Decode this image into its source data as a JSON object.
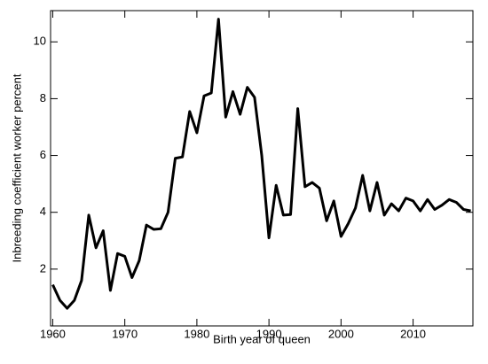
{
  "chart_data": {
    "type": "line",
    "x_label": "Birth year of queen",
    "y_label": "Inbreeding coefficient worker percent",
    "x": [
      1960,
      1961,
      1962,
      1963,
      1964,
      1965,
      1966,
      1967,
      1968,
      1969,
      1970,
      1971,
      1972,
      1973,
      1974,
      1975,
      1976,
      1977,
      1978,
      1979,
      1980,
      1981,
      1982,
      1983,
      1984,
      1985,
      1986,
      1987,
      1988,
      1989,
      1990,
      1991,
      1992,
      1993,
      1994,
      1995,
      1996,
      1997,
      1998,
      1999,
      2000,
      2001,
      2002,
      2003,
      2004,
      2005,
      2006,
      2007,
      2008,
      2009,
      2010,
      2011,
      2012,
      2013,
      2014,
      2015,
      2016,
      2017,
      2018
    ],
    "values": [
      1.45,
      0.9,
      0.62,
      0.9,
      1.6,
      3.9,
      2.75,
      3.35,
      1.25,
      2.55,
      2.45,
      1.7,
      2.3,
      3.55,
      3.4,
      3.42,
      4.0,
      5.9,
      5.95,
      7.55,
      6.8,
      8.1,
      8.2,
      10.8,
      7.35,
      8.25,
      7.45,
      8.4,
      8.05,
      6.0,
      3.1,
      4.95,
      3.9,
      3.92,
      7.65,
      4.9,
      5.05,
      4.85,
      3.7,
      4.4,
      3.15,
      3.6,
      4.15,
      5.3,
      4.05,
      5.05,
      3.9,
      4.3,
      4.05,
      4.5,
      4.4,
      4.05,
      4.45,
      4.1,
      4.25,
      4.45,
      4.35,
      4.1,
      4.05
    ],
    "color": "#000000",
    "xlim": [
      1959.7,
      2018.3
    ],
    "xticks": [
      1960,
      1970,
      1980,
      1990,
      2000,
      2010
    ],
    "ylim": [
      0,
      11.1
    ],
    "yticks": [
      2,
      4,
      6,
      8,
      10
    ]
  }
}
